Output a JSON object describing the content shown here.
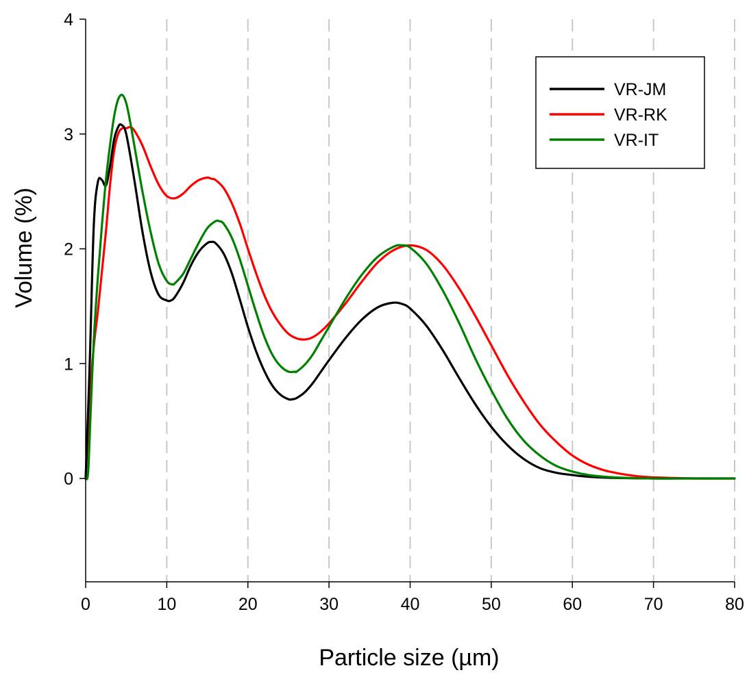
{
  "chart_data": {
    "type": "line",
    "xlabel": "Particle size (µm)",
    "ylabel": "Volume (%)",
    "xlim": [
      0,
      80
    ],
    "ylim": [
      -0.9,
      4
    ],
    "xticks": [
      "0",
      "10",
      "20",
      "30",
      "40",
      "50",
      "60",
      "70",
      "80"
    ],
    "yticks": [
      "0",
      "1",
      "2",
      "3",
      "4"
    ],
    "grid": "vertical dashed",
    "legend_position": "top-right",
    "series": [
      {
        "name": "VR-JM",
        "color": "#000000",
        "x": [
          0,
          0.5,
          1,
          1.5,
          2,
          2.5,
          3,
          3.5,
          4,
          4.4,
          5,
          6,
          7,
          8,
          9,
          10,
          10.5,
          11,
          12,
          13,
          14,
          15,
          15.5,
          16,
          17,
          18,
          19,
          20,
          21,
          22,
          23,
          24,
          25,
          25.5,
          26,
          27,
          28,
          29,
          30,
          32,
          34,
          36,
          37.8,
          39,
          40,
          42,
          44,
          46,
          48,
          50,
          52,
          54,
          56,
          58,
          60,
          62,
          65,
          70,
          75,
          80
        ],
        "y": [
          0,
          1.0,
          2.2,
          2.58,
          2.6,
          2.55,
          2.72,
          2.95,
          3.06,
          3.08,
          3.0,
          2.6,
          2.15,
          1.8,
          1.6,
          1.55,
          1.55,
          1.58,
          1.7,
          1.86,
          1.98,
          2.05,
          2.06,
          2.05,
          1.96,
          1.79,
          1.56,
          1.32,
          1.11,
          0.94,
          0.81,
          0.73,
          0.69,
          0.69,
          0.7,
          0.75,
          0.83,
          0.93,
          1.03,
          1.22,
          1.38,
          1.49,
          1.53,
          1.52,
          1.48,
          1.33,
          1.12,
          0.88,
          0.65,
          0.45,
          0.29,
          0.17,
          0.09,
          0.05,
          0.03,
          0.015,
          0.005,
          0,
          0,
          0
        ]
      },
      {
        "name": "VR-RK",
        "color": "#ff0000",
        "x": [
          0,
          0.5,
          1,
          1.5,
          2,
          2.5,
          3,
          3.5,
          4,
          4.5,
          5,
          5.5,
          6,
          7,
          8,
          9,
          10,
          11,
          12,
          13,
          14,
          15,
          15.5,
          16,
          17,
          18,
          19,
          20,
          21,
          22,
          23,
          24,
          25,
          26,
          27,
          28,
          29,
          30,
          32,
          34,
          36,
          38,
          40,
          42,
          44,
          46,
          48,
          50,
          52,
          54,
          56,
          58,
          60,
          62,
          64,
          66,
          68,
          70,
          72,
          75,
          80
        ],
        "y": [
          0,
          0.7,
          1.15,
          1.45,
          1.8,
          2.15,
          2.55,
          2.85,
          3.0,
          3.05,
          3.05,
          3.06,
          3.03,
          2.9,
          2.72,
          2.56,
          2.46,
          2.44,
          2.48,
          2.55,
          2.6,
          2.62,
          2.61,
          2.6,
          2.53,
          2.4,
          2.22,
          2.0,
          1.79,
          1.6,
          1.45,
          1.34,
          1.26,
          1.22,
          1.21,
          1.23,
          1.28,
          1.35,
          1.52,
          1.71,
          1.88,
          1.99,
          2.03,
          1.99,
          1.86,
          1.66,
          1.42,
          1.16,
          0.9,
          0.67,
          0.47,
          0.32,
          0.2,
          0.12,
          0.07,
          0.04,
          0.02,
          0.01,
          0.005,
          0,
          0
        ]
      },
      {
        "name": "VR-IT",
        "color": "#008000",
        "x": [
          0,
          0.3,
          0.6,
          1,
          1.5,
          2,
          2.5,
          3,
          3.5,
          4,
          4.5,
          5,
          5.5,
          6,
          7,
          8,
          9,
          10,
          10.7,
          11,
          12,
          13,
          14,
          15,
          16,
          16.5,
          17,
          18,
          19,
          20,
          21,
          22,
          23,
          24,
          25,
          25.8,
          26,
          27,
          28,
          29,
          30,
          32,
          34,
          36,
          38,
          39,
          40,
          42,
          44,
          46,
          48,
          50,
          52,
          54,
          56,
          58,
          60,
          62,
          65,
          70,
          75,
          80
        ],
        "y": [
          0,
          0.05,
          0.55,
          1.2,
          1.75,
          2.2,
          2.6,
          2.9,
          3.15,
          3.3,
          3.34,
          3.27,
          3.1,
          2.9,
          2.5,
          2.15,
          1.87,
          1.72,
          1.69,
          1.7,
          1.78,
          1.92,
          2.06,
          2.18,
          2.24,
          2.24,
          2.22,
          2.1,
          1.91,
          1.68,
          1.45,
          1.24,
          1.08,
          0.98,
          0.93,
          0.93,
          0.93,
          0.99,
          1.08,
          1.2,
          1.32,
          1.56,
          1.77,
          1.93,
          2.02,
          2.03,
          2.01,
          1.87,
          1.64,
          1.36,
          1.05,
          0.77,
          0.52,
          0.33,
          0.2,
          0.11,
          0.06,
          0.03,
          0.01,
          0,
          0,
          0
        ]
      }
    ]
  }
}
